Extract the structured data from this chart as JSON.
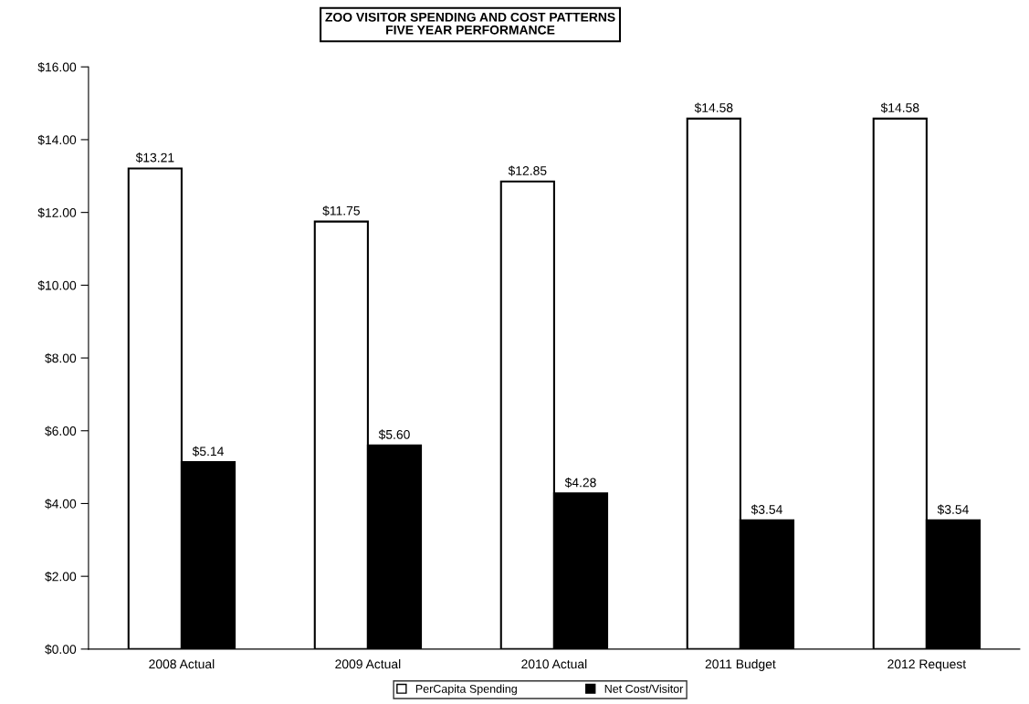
{
  "chart_data": {
    "type": "bar",
    "title": "ZOO VISITOR SPENDING AND COST PATTERNS\nFIVE YEAR PERFORMANCE",
    "categories": [
      "2008 Actual",
      "2009 Actual",
      "2010 Actual",
      "2011 Budget",
      "2012 Request"
    ],
    "series": [
      {
        "name": "PerCapita Spending",
        "color": "#ffffff",
        "values": [
          13.21,
          11.75,
          12.85,
          14.58,
          14.58
        ],
        "value_labels": [
          "$13.21",
          "$11.75",
          "$12.85",
          "$14.58",
          "$14.58"
        ]
      },
      {
        "name": "Net Cost/Visitor",
        "color": "#000000",
        "values": [
          5.14,
          5.6,
          4.28,
          3.54,
          3.54
        ],
        "value_labels": [
          "$5.14",
          "$5.60",
          "$4.28",
          "$3.54",
          "$3.54"
        ]
      }
    ],
    "ylim": [
      0,
      16
    ],
    "yticks": [
      {
        "value": 0,
        "label": "$0.00"
      },
      {
        "value": 2,
        "label": "$2.00"
      },
      {
        "value": 4,
        "label": "$4.00"
      },
      {
        "value": 6,
        "label": "$6.00"
      },
      {
        "value": 8,
        "label": "$8.00"
      },
      {
        "value": 10,
        "label": "$10.00"
      },
      {
        "value": 12,
        "label": "$12.00"
      },
      {
        "value": 14,
        "label": "$14.00"
      },
      {
        "value": 16,
        "label": "$16.00"
      }
    ],
    "grid": false,
    "legend": "bottom"
  }
}
